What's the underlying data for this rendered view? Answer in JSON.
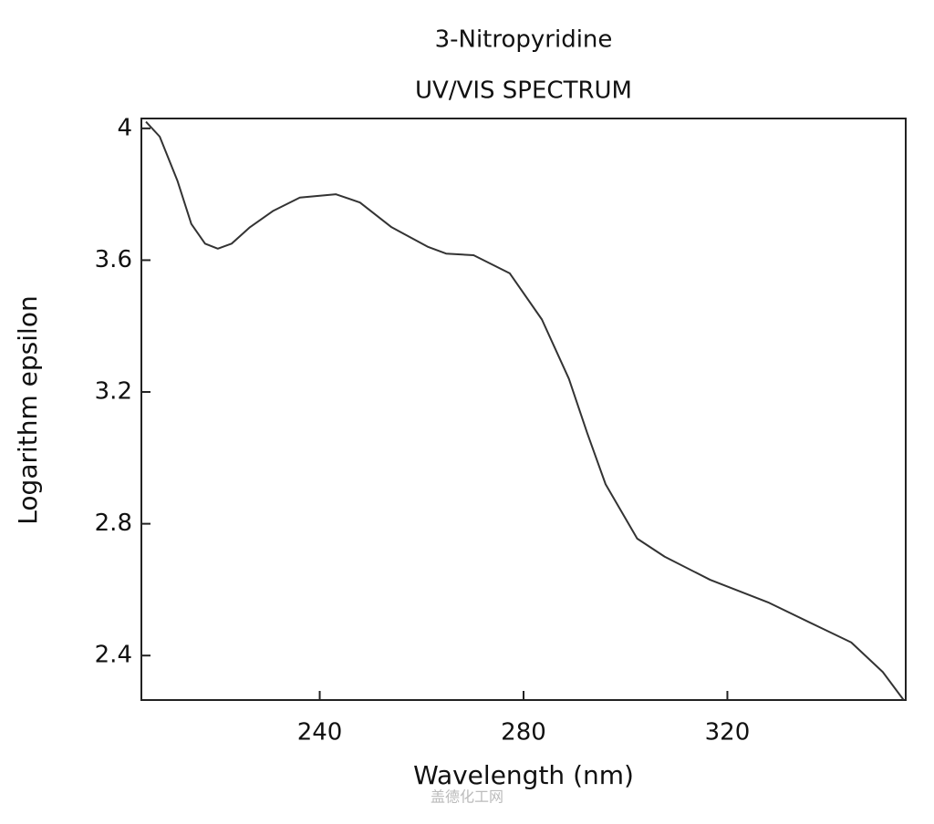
{
  "chart_data": {
    "type": "line",
    "title": "3-Nitropyridine",
    "subtitle": "UV/VIS SPECTRUM",
    "x_label": "Wavelength (nm)",
    "y_label": "Logarithm epsilon",
    "watermark": "盖德化工网",
    "x": [
      205.9,
      208.6,
      212.1,
      214.8,
      217.5,
      220.0,
      222.7,
      226.3,
      230.9,
      236.1,
      243.2,
      247.9,
      254.1,
      261.3,
      264.8,
      270.2,
      277.3,
      283.6,
      288.9,
      292.5,
      296.1,
      302.3,
      307.7,
      316.6,
      328.2,
      338.9,
      344.3,
      350.5,
      354.6
    ],
    "values": [
      4.02,
      3.975,
      3.84,
      3.71,
      3.65,
      3.635,
      3.65,
      3.7,
      3.75,
      3.79,
      3.8,
      3.775,
      3.7,
      3.64,
      3.62,
      3.615,
      3.56,
      3.42,
      3.24,
      3.075,
      2.92,
      2.755,
      2.7,
      2.63,
      2.56,
      2.48,
      2.44,
      2.35,
      2.265
    ],
    "color": "#333333",
    "xlim": [
      205,
      355
    ],
    "ylim": [
      2.265,
      4.03
    ],
    "xticks": [
      240,
      280,
      320
    ],
    "yticks": [
      4,
      3.6,
      3.2,
      2.8,
      2.4
    ]
  }
}
